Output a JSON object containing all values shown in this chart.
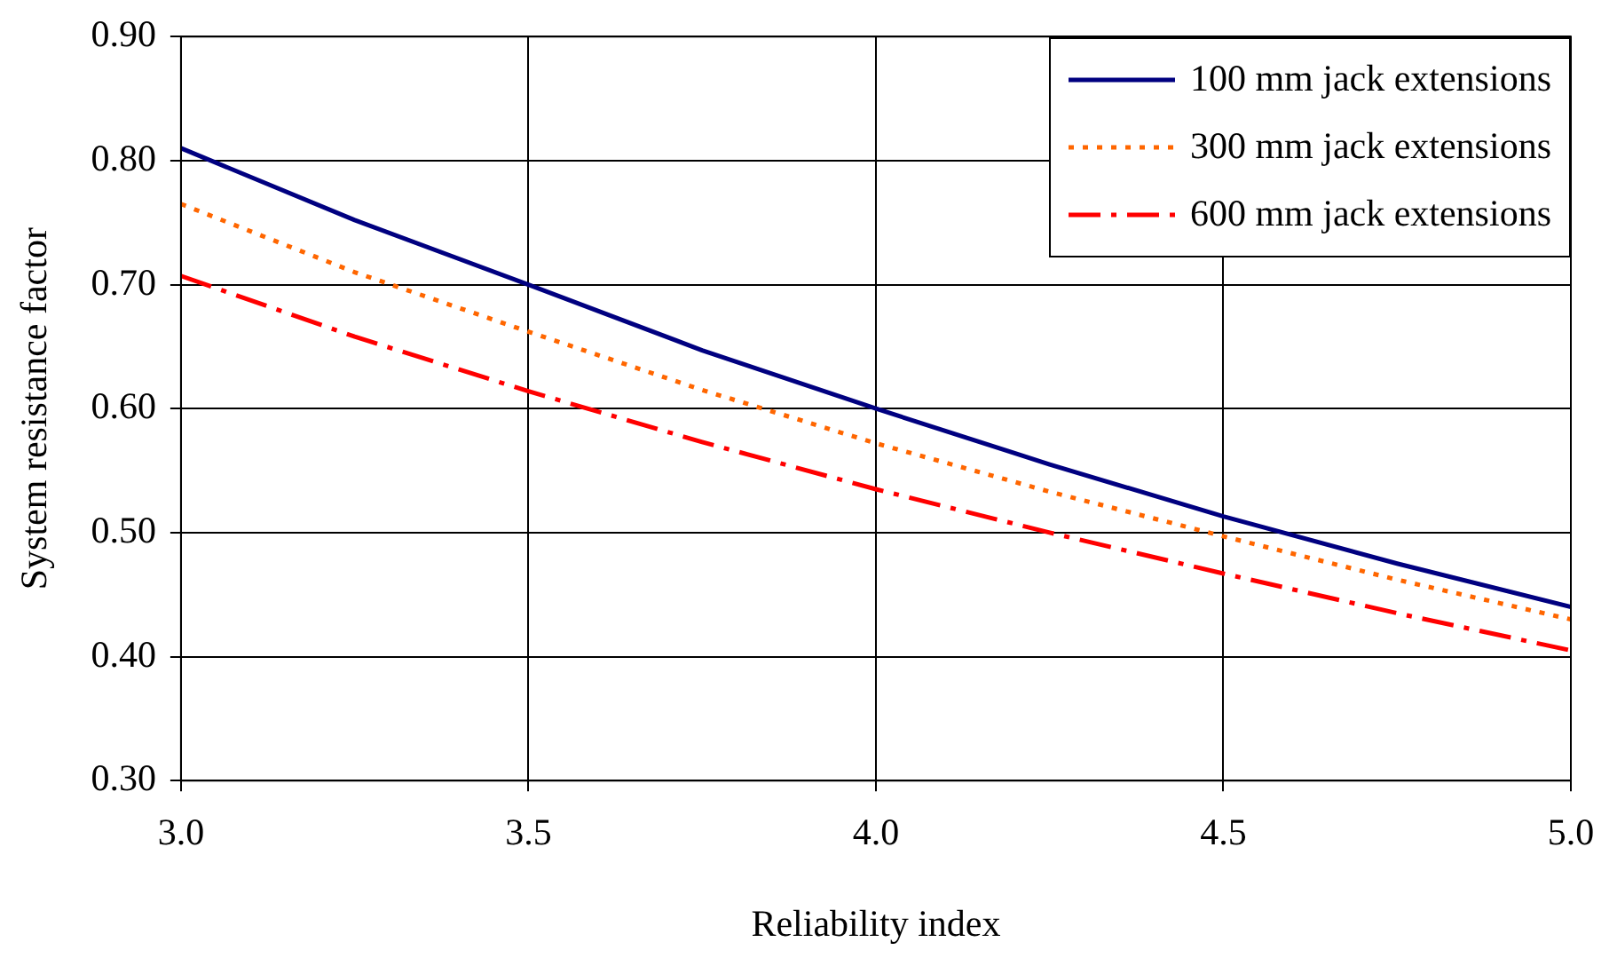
{
  "chart_data": {
    "type": "line",
    "xlabel": "Reliability index",
    "ylabel": "System resistance factor",
    "x": [
      3.0,
      3.25,
      3.5,
      3.75,
      4.0,
      4.25,
      4.5,
      4.75,
      5.0
    ],
    "series": [
      {
        "name": "100 mm jack extensions",
        "color": "#000080",
        "line_style": "solid",
        "values": [
          0.81,
          0.752,
          0.7,
          0.647,
          0.6,
          0.555,
          0.513,
          0.475,
          0.44
        ]
      },
      {
        "name": "300 mm jack extensions",
        "color": "#ff6600",
        "line_style": "dotted",
        "values": [
          0.765,
          0.71,
          0.662,
          0.615,
          0.572,
          0.533,
          0.497,
          0.462,
          0.43
        ]
      },
      {
        "name": "600 mm jack extensions",
        "color": "#ff0000",
        "line_style": "dashdot",
        "values": [
          0.707,
          0.658,
          0.614,
          0.573,
          0.535,
          0.5,
          0.467,
          0.435,
          0.405
        ]
      }
    ],
    "xlim": [
      3.0,
      5.0
    ],
    "xticks": [
      {
        "value": 3.0,
        "label": "3.0"
      },
      {
        "value": 3.5,
        "label": "3.5"
      },
      {
        "value": 4.0,
        "label": "4.0"
      },
      {
        "value": 4.5,
        "label": "4.5"
      },
      {
        "value": 5.0,
        "label": "5.0"
      }
    ],
    "ylim": [
      0.3,
      0.9
    ],
    "yticks": [
      {
        "value": 0.3,
        "label": "0.30"
      },
      {
        "value": 0.4,
        "label": "0.40"
      },
      {
        "value": 0.5,
        "label": "0.50"
      },
      {
        "value": 0.6,
        "label": "0.60"
      },
      {
        "value": 0.7,
        "label": "0.70"
      },
      {
        "value": 0.8,
        "label": "0.80"
      },
      {
        "value": 0.9,
        "label": "0.90"
      }
    ],
    "grid": true,
    "legend": "top right",
    "marker": "none"
  }
}
